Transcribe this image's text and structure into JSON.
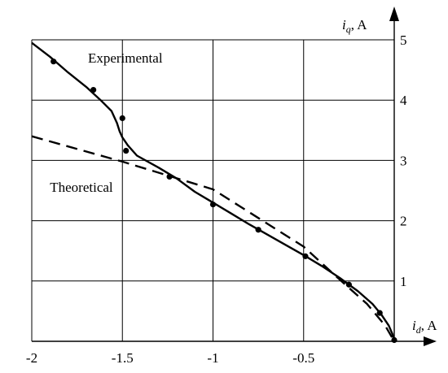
{
  "chart_data": {
    "type": "line",
    "title": "",
    "xlabel": {
      "var": "i",
      "sub": "d",
      "unit": ", A"
    },
    "ylabel": {
      "var": "i",
      "sub": "q",
      "unit": ", A"
    },
    "xlim": [
      -2,
      0
    ],
    "ylim": [
      0,
      5
    ],
    "x_ticks": [
      -2,
      -1.5,
      -1,
      -0.5
    ],
    "x_tick_labels": [
      "-2",
      "-1.5",
      "-1",
      "-0.5"
    ],
    "y_ticks": [
      1,
      2,
      3,
      4,
      5
    ],
    "y_tick_labels": [
      "1",
      "2",
      "3",
      "4",
      "5"
    ],
    "grid": true,
    "annotations": [
      {
        "text": "Experimental",
        "x": -1.69,
        "y": 4.62
      },
      {
        "text": "Theoretical",
        "x": -1.9,
        "y": 2.48
      }
    ],
    "series": [
      {
        "name": "Experimental",
        "style": "solid",
        "x": [
          -2.0,
          -1.9,
          -1.8,
          -1.7,
          -1.62,
          -1.56,
          -1.53,
          -1.515,
          -1.5,
          -1.47,
          -1.42,
          -1.3,
          -1.2,
          -1.1,
          -1.0,
          -0.9,
          -0.8,
          -0.7,
          -0.6,
          -0.5,
          -0.4,
          -0.3,
          -0.2,
          -0.12,
          -0.07,
          -0.03,
          -0.01,
          0.0
        ],
        "y": [
          4.95,
          4.72,
          4.46,
          4.22,
          4.0,
          3.82,
          3.62,
          3.48,
          3.38,
          3.25,
          3.08,
          2.88,
          2.7,
          2.48,
          2.3,
          2.12,
          1.94,
          1.77,
          1.6,
          1.43,
          1.25,
          1.05,
          0.83,
          0.62,
          0.44,
          0.26,
          0.12,
          0.0
        ]
      },
      {
        "name": "Theoretical",
        "style": "dashed",
        "x": [
          -2.0,
          -1.5,
          -1.0,
          -0.5,
          -0.3,
          -0.15,
          -0.05,
          0.0
        ],
        "y": [
          3.4,
          2.98,
          2.52,
          1.57,
          1.02,
          0.62,
          0.26,
          0.0
        ]
      },
      {
        "name": "Measured points",
        "style": "markers",
        "x": [
          -1.88,
          -1.66,
          -1.5,
          -1.48,
          -1.24,
          -1.0,
          -0.75,
          -0.49,
          -0.25,
          -0.08,
          0.0
        ],
        "y": [
          4.64,
          4.17,
          3.7,
          3.16,
          2.73,
          2.27,
          1.85,
          1.41,
          0.94,
          0.47,
          0.02
        ]
      }
    ]
  }
}
